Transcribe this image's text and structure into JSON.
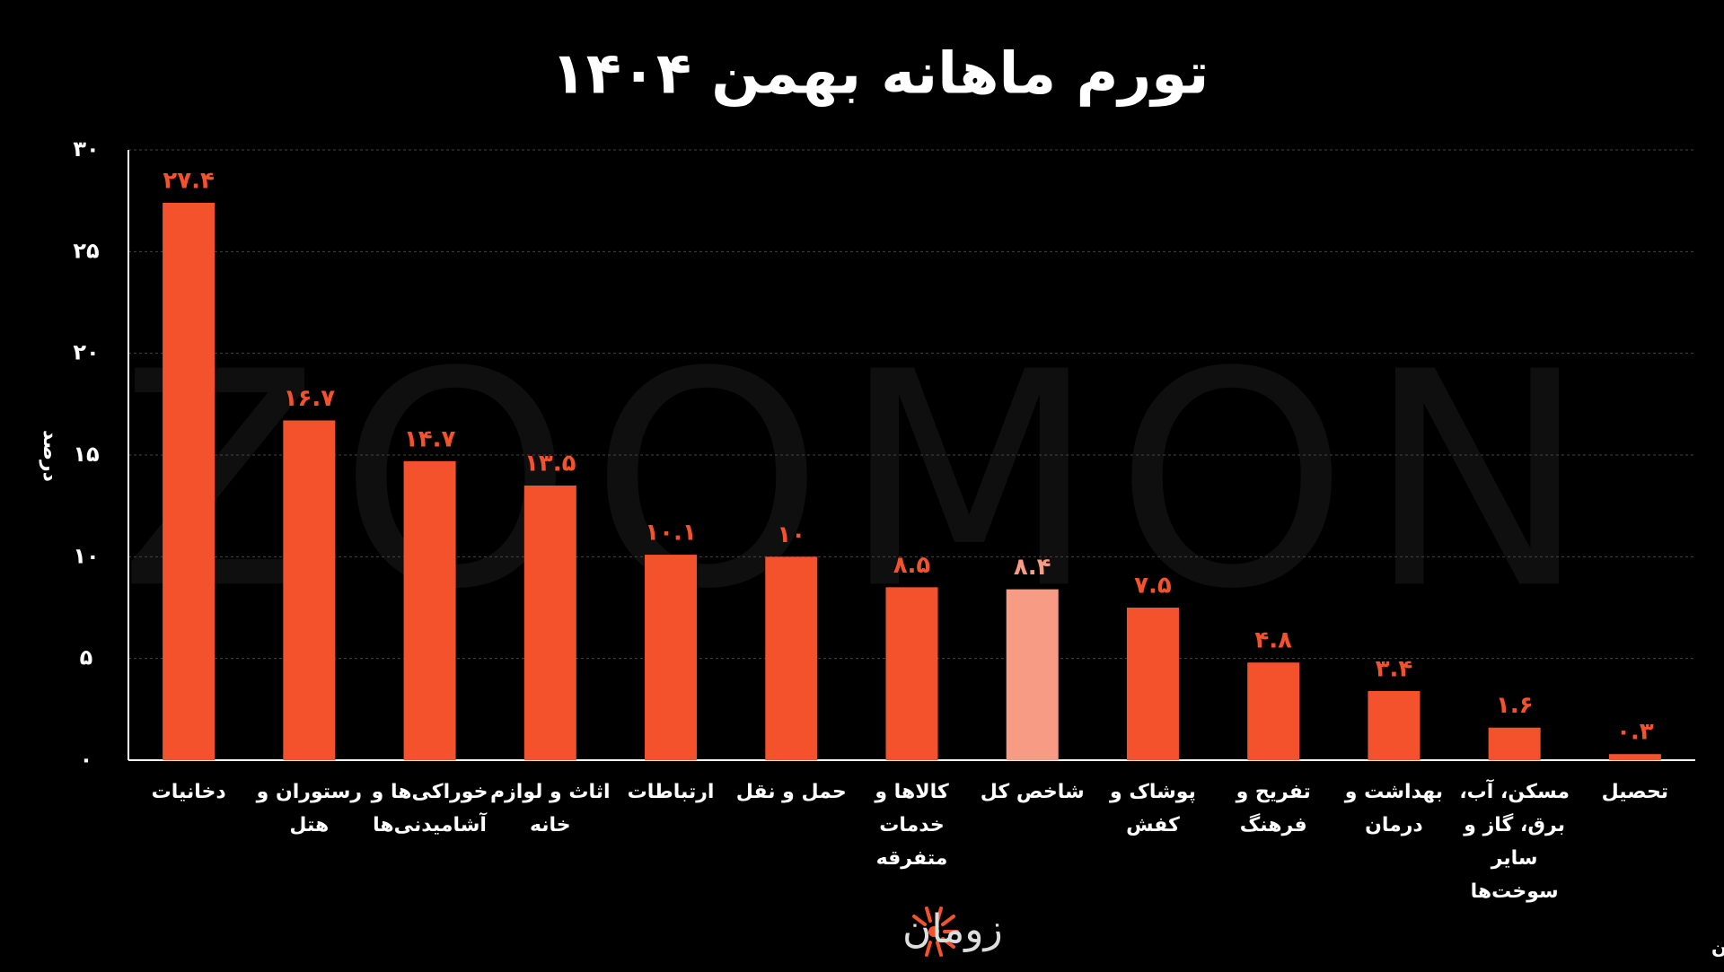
{
  "chart_data": {
    "type": "bar",
    "title": "تورم ماهانه بهمن ۱۴۰۴",
    "y_label": "درصد",
    "watermark": "ZOOMON",
    "logo": "زومان",
    "source": "منبع داده: بانک مرکزی ایران",
    "categories": [
      "دخانیات",
      "رستوران و\nهتل",
      "خوراکی‌ها و\nآشامیدنی‌ها",
      "اثاث و لوازم\nخانه",
      "ارتباطات",
      "حمل و نقل",
      "کالاها و\nخدمات\nمتفرقه",
      "شاخص کل",
      "پوشاک و\nکفش",
      "تفریح و\nفرهنگ",
      "بهداشت و\nدرمان",
      "مسکن، آب،\nبرق، گاز و\nسایر\nسوخت‌ها",
      "تحصیل"
    ],
    "values": [
      27.4,
      16.7,
      14.7,
      13.5,
      10.1,
      10,
      8.5,
      8.4,
      7.5,
      4.8,
      3.4,
      1.6,
      0.3
    ],
    "value_labels": [
      "۲۷.۴",
      "۱۶.۷",
      "۱۴.۷",
      "۱۳.۵",
      "۱۰.۱",
      "۱۰",
      "۸.۵",
      "۸.۴",
      "۷.۵",
      "۴.۸",
      "۳.۴",
      "۱.۶",
      "۰.۳"
    ],
    "colors": [
      "#f4522d",
      "#f4522d",
      "#f4522d",
      "#f4522d",
      "#f4522d",
      "#f4522d",
      "#f4522d",
      "#f79b84",
      "#f4522d",
      "#f4522d",
      "#f4522d",
      "#f4522d",
      "#f4522d"
    ],
    "ylim": [
      0,
      30
    ],
    "yticks": [
      {
        "value": 0,
        "label": "۰"
      },
      {
        "value": 5,
        "label": "۵"
      },
      {
        "value": 10,
        "label": "۱۰"
      },
      {
        "value": 15,
        "label": "۱۵"
      },
      {
        "value": 20,
        "label": "۲۰"
      },
      {
        "value": 25,
        "label": "۲۵"
      },
      {
        "value": 30,
        "label": "۳۰"
      }
    ],
    "grid": true
  }
}
